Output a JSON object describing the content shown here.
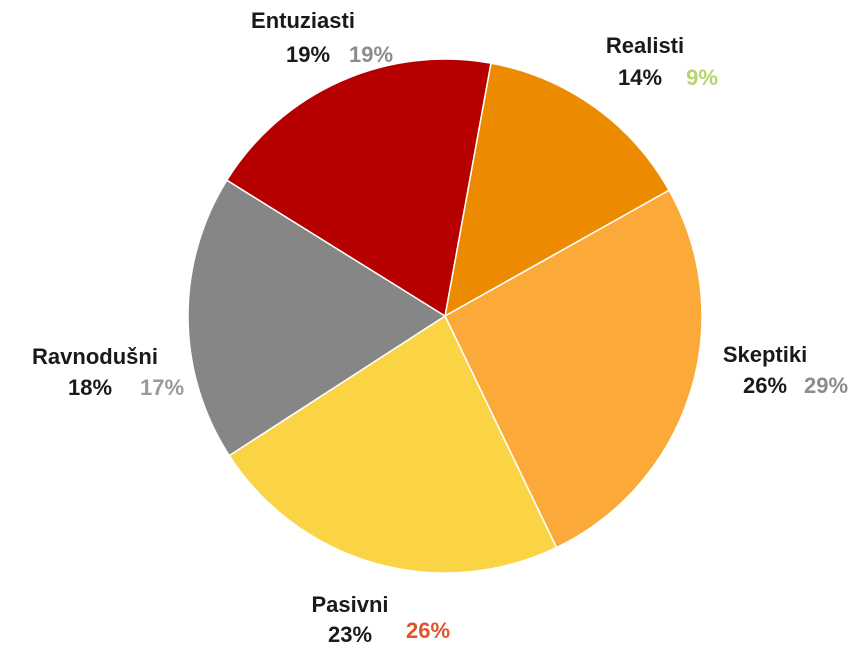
{
  "chart_data": {
    "type": "pie",
    "categories": [
      "Realisti",
      "Skeptiki",
      "Pasivni",
      "Ravnodušni",
      "Entuziasti"
    ],
    "values": [
      14,
      26,
      23,
      18,
      19
    ],
    "value_labels": [
      "14%",
      "26%",
      "23%",
      "18%",
      "19%"
    ],
    "colors": [
      "#ed8b00",
      "#fbaa3a",
      "#fad444",
      "#868686",
      "#b60000"
    ],
    "second_values": [
      9,
      29,
      26,
      17,
      19
    ],
    "second_value_labels": [
      "9%",
      "29%",
      "26%",
      "17%",
      "19%"
    ],
    "second_label_colors": [
      "#b5d56a",
      "#8c8c8c",
      "#e0552b",
      "#9a9a9a",
      "#8c8c8c"
    ]
  }
}
